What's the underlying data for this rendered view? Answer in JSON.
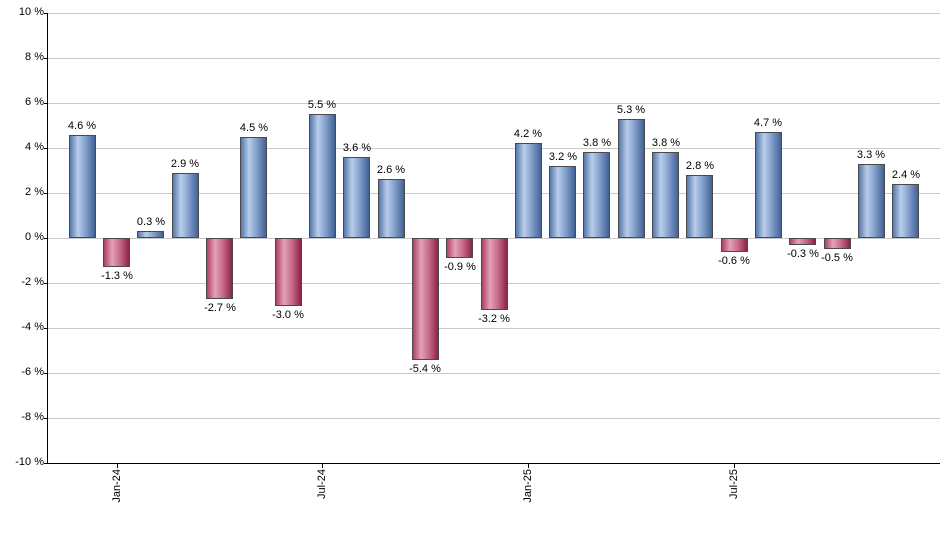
{
  "chart_data": {
    "type": "bar",
    "title": "",
    "xlabel": "",
    "ylabel": "",
    "unit": "%",
    "ylim": [
      -10,
      10
    ],
    "y_tick_step": 2,
    "y_ticks": [
      {
        "value": 10,
        "label": "10 %"
      },
      {
        "value": 8,
        "label": "8 %"
      },
      {
        "value": 6,
        "label": "6 %"
      },
      {
        "value": 4,
        "label": "4 %"
      },
      {
        "value": 2,
        "label": "2 %"
      },
      {
        "value": 0,
        "label": "0 %"
      },
      {
        "value": -2,
        "label": "-2 %"
      },
      {
        "value": -4,
        "label": "-4 %"
      },
      {
        "value": -6,
        "label": "-6 %"
      },
      {
        "value": -8,
        "label": "-8 %"
      },
      {
        "value": -10,
        "label": "-10 %"
      }
    ],
    "x_ticks": [
      {
        "slot": 2,
        "label": "Jan-24"
      },
      {
        "slot": 8,
        "label": "Jul-24"
      },
      {
        "slot": 14,
        "label": "Jan-25"
      },
      {
        "slot": 20,
        "label": "Jul-25"
      }
    ],
    "slots_total": 26,
    "bars": [
      {
        "slot": 1,
        "value": 4.6,
        "label": "4.6 %"
      },
      {
        "slot": 2,
        "value": -1.3,
        "label": "-1.3 %"
      },
      {
        "slot": 3,
        "value": 0.3,
        "label": "0.3 %"
      },
      {
        "slot": 4,
        "value": 2.9,
        "label": "2.9 %"
      },
      {
        "slot": 5,
        "value": -2.7,
        "label": "-2.7 %"
      },
      {
        "slot": 6,
        "value": 4.5,
        "label": "4.5 %"
      },
      {
        "slot": 7,
        "value": -3.0,
        "label": "-3.0 %"
      },
      {
        "slot": 8,
        "value": 5.5,
        "label": "5.5 %"
      },
      {
        "slot": 9,
        "value": 3.6,
        "label": "3.6 %"
      },
      {
        "slot": 10,
        "value": 2.6,
        "label": "2.6 %"
      },
      {
        "slot": 11,
        "value": -5.4,
        "label": "-5.4 %"
      },
      {
        "slot": 12,
        "value": -0.9,
        "label": "-0.9 %"
      },
      {
        "slot": 13,
        "value": -3.2,
        "label": "-3.2 %"
      },
      {
        "slot": 14,
        "value": 4.2,
        "label": "4.2 %"
      },
      {
        "slot": 15,
        "value": 3.2,
        "label": "3.2 %"
      },
      {
        "slot": 16,
        "value": 3.8,
        "label": "3.8 %"
      },
      {
        "slot": 17,
        "value": 5.3,
        "label": "5.3 %"
      },
      {
        "slot": 18,
        "value": 3.8,
        "label": "3.8 %"
      },
      {
        "slot": 19,
        "value": 2.8,
        "label": "2.8 %"
      },
      {
        "slot": 20,
        "value": -0.6,
        "label": "-0.6 %"
      },
      {
        "slot": 21,
        "value": 4.7,
        "label": "4.7 %"
      },
      {
        "slot": 22,
        "value": -0.3,
        "label": "-0.3 %"
      },
      {
        "slot": 23,
        "value": -0.5,
        "label": "-0.5 %"
      },
      {
        "slot": 24,
        "value": 3.3,
        "label": "3.3 %"
      },
      {
        "slot": 25,
        "value": 2.4,
        "label": "2.4 %"
      }
    ],
    "grid": true,
    "legend": null,
    "colors": {
      "positive_bar_edge": "#426394",
      "positive_bar_light": "#b9cdea",
      "negative_bar_edge": "#8e2247",
      "negative_bar_light": "#e5a2b5",
      "bar_border": "#4a4a4a",
      "gridline": "#c9c9c9",
      "axis": "#000000",
      "label_text": "#000000",
      "background": "#ffffff"
    }
  }
}
